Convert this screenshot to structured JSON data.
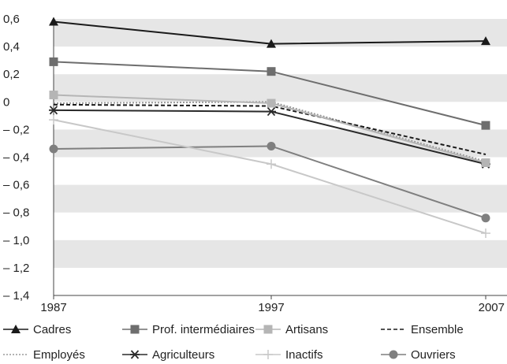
{
  "chart_data": {
    "type": "line",
    "title": "",
    "xlabel": "",
    "ylabel": "",
    "x": [
      "1987",
      "1997",
      "2007"
    ],
    "ylim": [
      -1.4,
      0.6
    ],
    "yticks": [
      0.6,
      0.4,
      0.2,
      0,
      -0.2,
      -0.4,
      -0.6,
      -0.8,
      -1.0,
      -1.2,
      -1.4
    ],
    "ytick_labels": [
      "0,6",
      "0,4",
      "0,2",
      "0",
      "– 0,2",
      "– 0,4",
      "– 0,6",
      "– 0,8",
      "– 1,0",
      "– 1,2",
      "– 1,4"
    ],
    "grid": "alternating horizontal bands",
    "legend_position": "bottom",
    "series": [
      {
        "name": "Cadres",
        "values": [
          0.58,
          0.42,
          0.44
        ],
        "color": "#1a1a1a",
        "marker": "triangle",
        "dash": "solid"
      },
      {
        "name": "Prof. intermédiaires",
        "values": [
          0.29,
          0.22,
          -0.17
        ],
        "color": "#6e6e6e",
        "marker": "square",
        "dash": "solid"
      },
      {
        "name": "Artisans",
        "values": [
          0.05,
          -0.01,
          -0.44
        ],
        "color": "#b5b5b5",
        "marker": "square",
        "dash": "solid"
      },
      {
        "name": "Ensemble",
        "values": [
          -0.02,
          -0.03,
          -0.38
        ],
        "color": "#1a1a1a",
        "marker": "none",
        "dash": "dashed"
      },
      {
        "name": "Employés",
        "values": [
          -0.01,
          0.0,
          -0.43
        ],
        "color": "#9a9a9a",
        "marker": "none",
        "dash": "dotted"
      },
      {
        "name": "Agriculteurs",
        "values": [
          -0.06,
          -0.07,
          -0.45
        ],
        "color": "#2a2a2a",
        "marker": "asterisk",
        "dash": "solid"
      },
      {
        "name": "Inactifs",
        "values": [
          -0.13,
          -0.45,
          -0.95
        ],
        "color": "#c8c8c8",
        "marker": "plus",
        "dash": "solid"
      },
      {
        "name": "Ouvriers",
        "values": [
          -0.34,
          -0.32,
          -0.84
        ],
        "color": "#7f7f7f",
        "marker": "circle",
        "dash": "solid"
      }
    ]
  }
}
